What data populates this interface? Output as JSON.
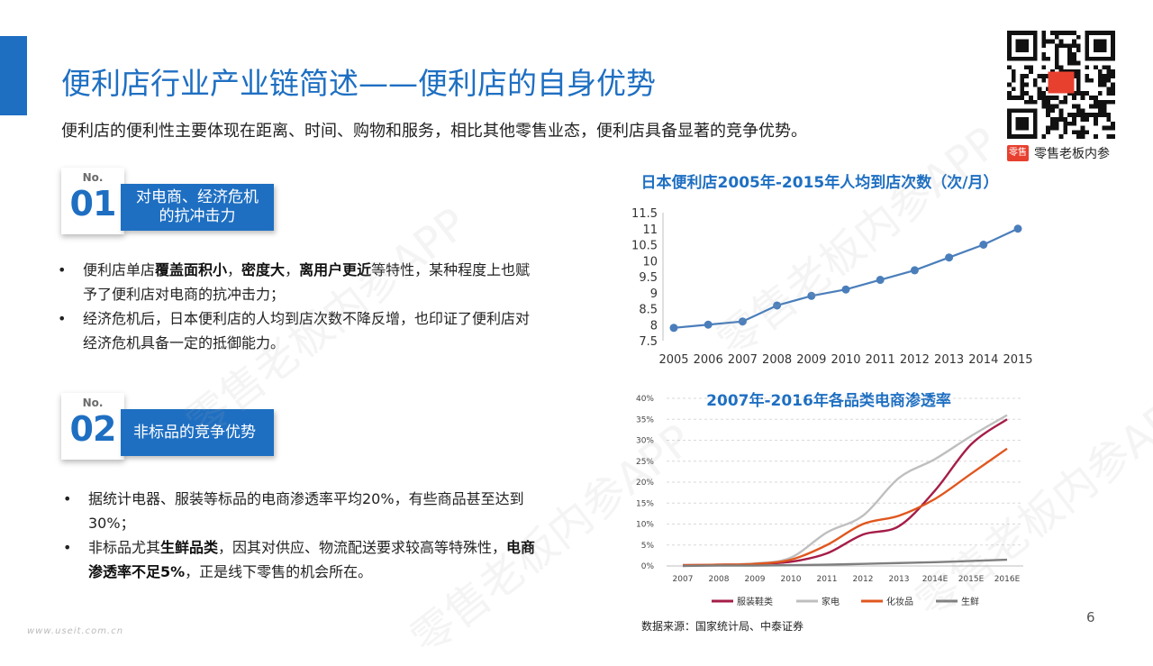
{
  "header": {
    "title": "便利店行业产业链简述——便利店的自身优势",
    "subtitle": "便利店的便利性主要体现在距离、时间、购物和服务，相比其他零售业态，便利店具备显著的竞争优势。"
  },
  "brand": {
    "logo_text": "零售",
    "name": "零售老板内参"
  },
  "sections": [
    {
      "no_label": "No.",
      "number": "01",
      "heading_lines": [
        "对电商、经济危机",
        "的抗冲击力"
      ],
      "bullets": [
        [
          {
            "t": "便利店单店",
            "b": false
          },
          {
            "t": "覆盖面积小",
            "b": true
          },
          {
            "t": "，",
            "b": false
          },
          {
            "t": "密度大",
            "b": true
          },
          {
            "t": "，",
            "b": false
          },
          {
            "t": "离用户更近",
            "b": true
          },
          {
            "t": "等特性，某种程度上也赋予了便利店对电商的抗冲击力；",
            "b": false
          }
        ],
        [
          {
            "t": "经济危机后，日本便利店的人均到店次数不降反增，也印证了便利店对经济危机具备一定的抵御能力。",
            "b": false
          }
        ]
      ]
    },
    {
      "no_label": "No.",
      "number": "02",
      "heading_lines": [
        "非标品的竞争优势"
      ],
      "bullets": [
        [
          {
            "t": "据统计电器、服装等标品的电商渗透率平均20%，有些商品甚至达到30%；",
            "b": false
          }
        ],
        [
          {
            "t": "非标品尤其",
            "b": false
          },
          {
            "t": "生鲜品类",
            "b": true
          },
          {
            "t": "，因其对供应、物流配送要求较高等特殊性，",
            "b": false
          },
          {
            "t": "电商渗透率不足5%",
            "b": true
          },
          {
            "t": "，正是线下零售的机会所在。",
            "b": false
          }
        ]
      ]
    }
  ],
  "chart_data": [
    {
      "type": "line",
      "title": "日本便利店2005年-2015年人均到店次数（次/月）",
      "x": [
        "2005",
        "2006",
        "2007",
        "2008",
        "2009",
        "2010",
        "2011",
        "2012",
        "2013",
        "2014",
        "2015"
      ],
      "series": [
        {
          "values": [
            7.9,
            8.0,
            8.1,
            8.6,
            8.9,
            9.1,
            9.4,
            9.7,
            10.1,
            10.5,
            11.0
          ],
          "color": "#4a7ebb"
        }
      ],
      "y_ticks": [
        "7.5",
        "8",
        "8.5",
        "9",
        "9.5",
        "10",
        "10.5",
        "11",
        "11.5"
      ],
      "ylim": [
        7.5,
        11.5
      ],
      "grid": false,
      "legend": "none"
    },
    {
      "type": "line",
      "title": "2007年-2016年各品类电商渗透率",
      "x": [
        "2007",
        "2008",
        "2009",
        "2010",
        "2011",
        "2012",
        "2013",
        "2014E",
        "2015E",
        "2016E"
      ],
      "y_ticks": [
        "0%",
        "5%",
        "10%",
        "15%",
        "20%",
        "25%",
        "30%",
        "35%",
        "40%"
      ],
      "ylim": [
        0,
        40
      ],
      "grid": true,
      "legend": "bottom",
      "series": [
        {
          "name": "服装鞋类",
          "color": "#a51d48",
          "values": [
            0.2,
            0.3,
            0.5,
            1.0,
            3.0,
            7.5,
            9.5,
            18.0,
            29.0,
            35.0
          ]
        },
        {
          "name": "家电",
          "color": "#bfbfbf",
          "values": [
            0.2,
            0.3,
            0.6,
            2.0,
            8.0,
            12.0,
            21.0,
            25.5,
            31.0,
            36.0
          ]
        },
        {
          "name": "化妆品",
          "color": "#e0571f",
          "values": [
            0.2,
            0.3,
            0.5,
            1.5,
            5.0,
            10.0,
            12.0,
            16.0,
            22.0,
            28.0
          ]
        },
        {
          "name": "生鲜",
          "color": "#7f7f7f",
          "values": [
            0.0,
            0.1,
            0.1,
            0.2,
            0.3,
            0.5,
            0.7,
            0.9,
            1.2,
            1.5
          ]
        }
      ]
    }
  ],
  "footer": {
    "source": "数据来源：国家统计局、中泰证券",
    "page": "6",
    "site": "www.useit.com.cn",
    "watermark": "零售老板内参APP"
  }
}
